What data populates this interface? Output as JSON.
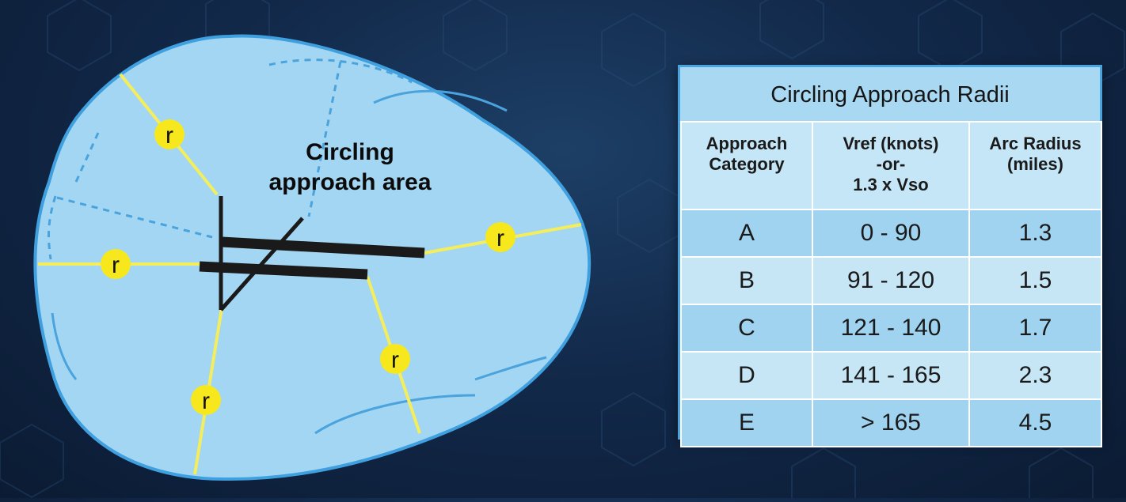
{
  "diagram": {
    "area_label_line1": "Circling",
    "area_label_line2": "approach area",
    "radius_label": "r",
    "colors": {
      "area_fill": "#a3d6f3",
      "area_stroke": "#3fa0e0",
      "radius_line": "#f4ee5c",
      "radius_marker": "#f7e81d",
      "runway": "#1a1a1a"
    }
  },
  "table": {
    "title": "Circling Approach Radii",
    "headers": [
      [
        "Approach",
        "Category"
      ],
      [
        "Vref (knots)",
        "-or-",
        "1.3 x Vso"
      ],
      [
        "Arc Radius",
        "(miles)"
      ]
    ],
    "rows": [
      [
        "A",
        "0 - 90",
        "1.3"
      ],
      [
        "B",
        "91 - 120",
        "1.5"
      ],
      [
        "C",
        "121 - 140",
        "1.7"
      ],
      [
        "D",
        "141 - 165",
        "2.3"
      ],
      [
        "E",
        "> 165",
        "4.5"
      ]
    ]
  }
}
